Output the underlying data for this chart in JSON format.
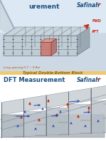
{
  "fig_width": 1.49,
  "fig_height": 1.98,
  "dpi": 100,
  "top_bg": "#dce8f0",
  "top_bg2": "#c8d8e8",
  "bottom_bg": "#ffffff",
  "divider_color": "#f0c870",
  "divider_text": "Typical Double-Bottom Block",
  "divider_text_color": "#8B6010",
  "top_title": "urement",
  "bottom_title": "DFT Measurement",
  "logo_text": "Safinah",
  "logo_plus_color": "#dd3311",
  "logo_text_color": "#1a5080",
  "title_color": "#1a5080",
  "top_note": "Long spacing 0.7 ~ 0.8m",
  "fwd_label": "FWD",
  "aft_label": "AFT",
  "top_img_bg": "#b8c8d8",
  "struct_color": "#909098",
  "struct_light": "#c8d0d8",
  "struct_dark": "#707880",
  "red_block": "#c87870",
  "red_block_light": "#d89888",
  "arrow_red": "#cc2200",
  "arrow_blue": "#2244bb",
  "dft_bg": "#c0c8d0",
  "dft_wall": "#d0d4d8",
  "dft_floor": "#b8bec4"
}
